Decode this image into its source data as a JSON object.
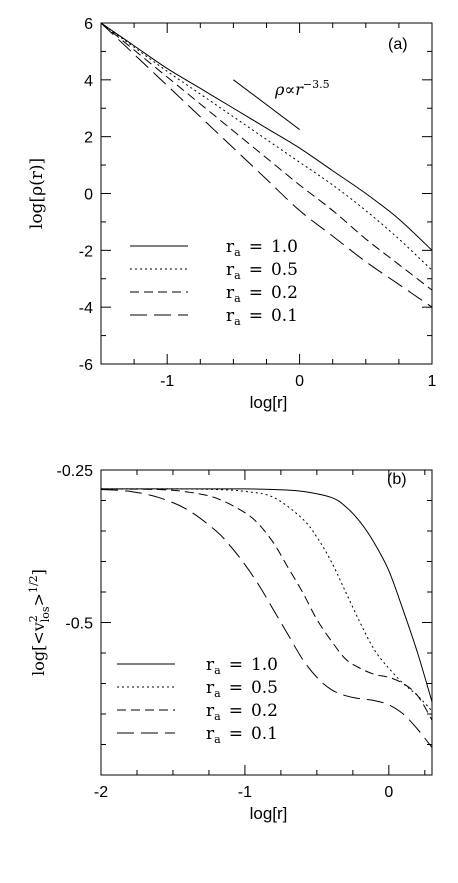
{
  "chart_data": [
    {
      "type": "line",
      "panel_label": "(a)",
      "xlabel": "log[r]",
      "ylabel": "log[ρ(r)]",
      "xlim": [
        -1.5,
        1.0
      ],
      "ylim": [
        -6,
        6
      ],
      "xticks": [
        -1,
        0,
        1
      ],
      "yticks": [
        -6,
        -4,
        -2,
        0,
        2,
        4,
        6
      ],
      "legend_position": "bottom-left",
      "legend_prefix": "r",
      "legend_subscript": "a",
      "annotation": {
        "text": "ρ∝r",
        "exponent": "−3.5",
        "segment": {
          "x": [
            -0.5,
            0.0
          ],
          "y": [
            4.0,
            2.25
          ]
        }
      },
      "series": [
        {
          "name": "1.0",
          "dash": "solid",
          "x": [
            -1.5,
            -1.25,
            -1.0,
            -0.75,
            -0.5,
            -0.25,
            0.0,
            0.25,
            0.5,
            0.75,
            1.0
          ],
          "y": [
            6.0,
            5.2,
            4.4,
            3.7,
            3.0,
            2.3,
            1.6,
            0.8,
            0.0,
            -0.9,
            -2.0
          ]
        },
        {
          "name": "0.5",
          "dash": "dotted",
          "x": [
            -1.5,
            -1.25,
            -1.0,
            -0.75,
            -0.5,
            -0.25,
            0.0,
            0.25,
            0.5,
            0.75,
            1.0
          ],
          "y": [
            6.0,
            5.15,
            4.3,
            3.5,
            2.7,
            1.9,
            1.1,
            0.3,
            -0.6,
            -1.6,
            -2.7
          ]
        },
        {
          "name": "0.2",
          "dash": "dashed",
          "x": [
            -1.5,
            -1.25,
            -1.0,
            -0.75,
            -0.5,
            -0.25,
            0.0,
            0.25,
            0.5,
            0.75,
            1.0
          ],
          "y": [
            6.0,
            5.05,
            4.1,
            3.15,
            2.2,
            1.25,
            0.3,
            -0.6,
            -1.6,
            -2.5,
            -3.4
          ]
        },
        {
          "name": "0.1",
          "dash": "longdash",
          "x": [
            -1.5,
            -1.25,
            -1.0,
            -0.75,
            -0.5,
            -0.25,
            0.0,
            0.25,
            0.5,
            0.75,
            1.0
          ],
          "y": [
            6.0,
            4.9,
            3.8,
            2.7,
            1.6,
            0.5,
            -0.6,
            -1.5,
            -2.4,
            -3.2,
            -4.0
          ]
        }
      ]
    },
    {
      "type": "line",
      "panel_label": "(b)",
      "xlabel": "log[r]",
      "ylabel": "log[<v²los>1/2]",
      "ylabel_parts": {
        "prefix": "log[<v",
        "sup": "2",
        "sub": "los",
        "mid": ">",
        "exp": "1/2",
        "suffix": "]"
      },
      "xlim": [
        -2,
        0.3
      ],
      "ylim": [
        -0.75,
        -0.25
      ],
      "xticks": [
        -2,
        -1,
        0
      ],
      "yticks": [
        -0.25,
        -0.5
      ],
      "ytick_labels": [
        "-0.25",
        "-0.5"
      ],
      "legend_position": "bottom-left",
      "legend_prefix": "r",
      "legend_subscript": "a",
      "series": [
        {
          "name": "1.0",
          "dash": "solid",
          "x": [
            -2.0,
            -1.5,
            -1.0,
            -0.8,
            -0.6,
            -0.4,
            -0.3,
            -0.2,
            -0.1,
            0.0,
            0.1,
            0.2,
            0.3
          ],
          "y": [
            -0.281,
            -0.281,
            -0.281,
            -0.282,
            -0.285,
            -0.295,
            -0.31,
            -0.335,
            -0.37,
            -0.415,
            -0.48,
            -0.55,
            -0.63
          ]
        },
        {
          "name": "0.5",
          "dash": "dotted",
          "x": [
            -2.0,
            -1.5,
            -1.2,
            -1.0,
            -0.8,
            -0.6,
            -0.5,
            -0.4,
            -0.3,
            -0.2,
            -0.1,
            0.0,
            0.1,
            0.2,
            0.3
          ],
          "y": [
            -0.281,
            -0.281,
            -0.282,
            -0.285,
            -0.295,
            -0.33,
            -0.36,
            -0.4,
            -0.45,
            -0.5,
            -0.545,
            -0.575,
            -0.6,
            -0.62,
            -0.645
          ]
        },
        {
          "name": "0.2",
          "dash": "dashed",
          "x": [
            -2.0,
            -1.6,
            -1.4,
            -1.2,
            -1.0,
            -0.9,
            -0.8,
            -0.7,
            -0.6,
            -0.5,
            -0.4,
            -0.3,
            -0.2,
            -0.1,
            0.0,
            0.1,
            0.2,
            0.3
          ],
          "y": [
            -0.281,
            -0.282,
            -0.286,
            -0.296,
            -0.32,
            -0.34,
            -0.37,
            -0.41,
            -0.45,
            -0.495,
            -0.53,
            -0.56,
            -0.575,
            -0.585,
            -0.59,
            -0.6,
            -0.62,
            -0.66
          ]
        },
        {
          "name": "0.1",
          "dash": "longdash",
          "x": [
            -2.0,
            -1.8,
            -1.6,
            -1.4,
            -1.2,
            -1.1,
            -1.0,
            -0.9,
            -0.8,
            -0.7,
            -0.6,
            -0.5,
            -0.4,
            -0.3,
            -0.2,
            -0.1,
            0.0,
            0.1,
            0.2,
            0.3
          ],
          "y": [
            -0.282,
            -0.285,
            -0.295,
            -0.315,
            -0.35,
            -0.375,
            -0.405,
            -0.44,
            -0.48,
            -0.52,
            -0.56,
            -0.59,
            -0.61,
            -0.62,
            -0.625,
            -0.628,
            -0.635,
            -0.65,
            -0.675,
            -0.705
          ]
        }
      ]
    }
  ]
}
